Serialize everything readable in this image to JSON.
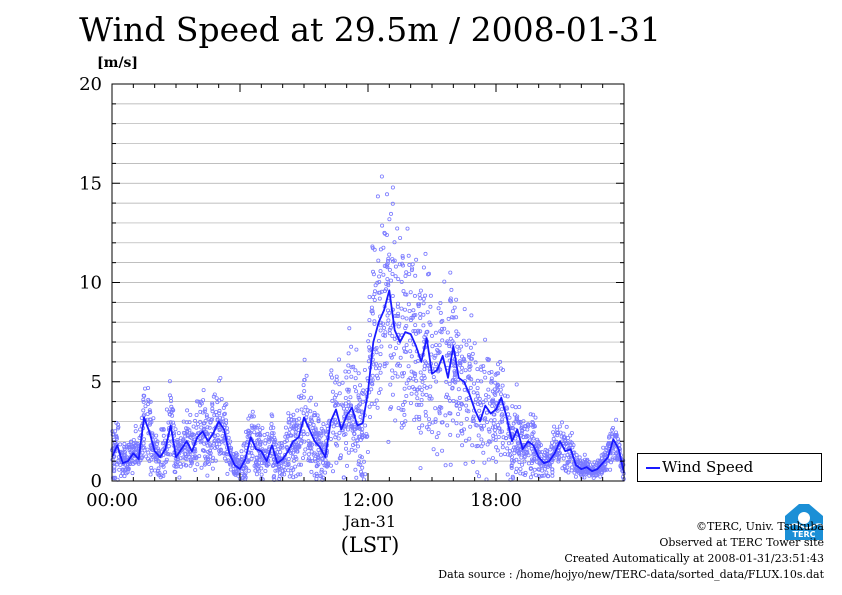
{
  "chart_data": {
    "type": "scatter",
    "title": "Wind Speed at 29.5m / 2008-01-31",
    "y_unit": "[m/s]",
    "ylim": [
      0,
      20
    ],
    "y_ticks": [
      "0",
      "5",
      "10",
      "15",
      "20"
    ],
    "x_range_hours": [
      0,
      24
    ],
    "x_ticks": [
      {
        "hour": 0,
        "label": "00:00"
      },
      {
        "hour": 6,
        "label": "06:00"
      },
      {
        "hour": 12,
        "label": "12:00"
      },
      {
        "hour": 18,
        "label": "18:00"
      }
    ],
    "x_sublabel_date": "Jan-31",
    "x_sublabel_tz": "(LST)",
    "grid": true,
    "legend_position": "right-bottom",
    "series": [
      {
        "name": "Wind Speed",
        "color": "#1a1aff",
        "scatter_color": "#7b7bff",
        "line_hours": [
          0,
          0.25,
          0.5,
          0.75,
          1,
          1.25,
          1.5,
          1.75,
          2,
          2.25,
          2.5,
          2.75,
          3,
          3.25,
          3.5,
          3.75,
          4,
          4.25,
          4.5,
          4.75,
          5,
          5.25,
          5.5,
          5.75,
          6,
          6.25,
          6.5,
          6.75,
          7,
          7.25,
          7.5,
          7.75,
          8,
          8.25,
          8.5,
          8.75,
          9,
          9.25,
          9.5,
          9.75,
          10,
          10.25,
          10.5,
          10.75,
          11,
          11.25,
          11.5,
          11.75,
          12,
          12.25,
          12.5,
          12.75,
          13,
          13.25,
          13.5,
          13.75,
          14,
          14.25,
          14.5,
          14.75,
          15,
          15.25,
          15.5,
          15.75,
          16,
          16.25,
          16.5,
          16.75,
          17,
          17.25,
          17.5,
          17.75,
          18,
          18.25,
          18.5,
          18.75,
          19,
          19.25,
          19.5,
          19.75,
          20,
          20.25,
          20.5,
          20.75,
          21,
          21.25,
          21.5,
          21.75,
          22,
          22.25,
          22.5,
          22.75,
          23,
          23.25,
          23.5,
          23.75,
          24
        ],
        "line_values": [
          1.2,
          1.8,
          0.9,
          1.0,
          1.4,
          1.1,
          3.2,
          2.5,
          1.5,
          1.2,
          1.6,
          2.8,
          1.2,
          1.6,
          2.0,
          1.5,
          2.2,
          2.5,
          2.0,
          2.4,
          3.0,
          2.6,
          1.4,
          0.8,
          0.6,
          1.1,
          2.2,
          1.6,
          1.5,
          1.0,
          1.8,
          0.9,
          1.1,
          1.5,
          2.0,
          2.2,
          3.2,
          2.6,
          2.0,
          1.7,
          1.2,
          3.0,
          3.6,
          2.6,
          3.3,
          3.7,
          2.8,
          2.9,
          4.5,
          7.0,
          8.0,
          8.6,
          9.6,
          7.6,
          7.0,
          7.5,
          7.4,
          6.8,
          6.0,
          7.2,
          5.4,
          5.6,
          6.3,
          5.2,
          6.8,
          5.2,
          5.0,
          4.4,
          3.6,
          3.0,
          3.8,
          3.4,
          3.6,
          4.2,
          3.2,
          2.0,
          2.6,
          1.6,
          2.0,
          1.8,
          1.2,
          0.9,
          1.0,
          1.4,
          2.0,
          1.5,
          1.6,
          0.8,
          0.6,
          0.7,
          0.5,
          0.6,
          0.9,
          1.2,
          2.1,
          1.6,
          0.4
        ],
        "scatter_spread": [
          1.0,
          1.2,
          0.6,
          0.6,
          0.9,
          0.8,
          2.0,
          1.6,
          0.8,
          0.8,
          1.3,
          2.0,
          0.8,
          1.0,
          1.2,
          1.0,
          1.3,
          1.4,
          1.2,
          1.5,
          1.6,
          1.5,
          0.9,
          0.5,
          0.4,
          0.8,
          1.3,
          1.1,
          1.0,
          0.8,
          1.2,
          0.7,
          0.8,
          1.1,
          1.4,
          1.6,
          2.0,
          1.8,
          1.4,
          1.2,
          1.0,
          1.8,
          2.3,
          2.0,
          2.4,
          2.6,
          2.3,
          2.5,
          3.0,
          3.5,
          4.0,
          4.2,
          4.5,
          4.3,
          4.0,
          4.2,
          4.0,
          3.8,
          3.6,
          3.8,
          3.4,
          3.3,
          3.5,
          3.0,
          3.2,
          3.0,
          2.8,
          2.6,
          2.3,
          2.0,
          2.2,
          2.0,
          2.0,
          2.2,
          1.8,
          1.4,
          1.6,
          1.2,
          1.3,
          1.2,
          0.8,
          0.6,
          0.6,
          0.8,
          1.0,
          0.8,
          0.9,
          0.5,
          0.4,
          0.4,
          0.3,
          0.3,
          0.5,
          0.6,
          0.9,
          0.7,
          0.3
        ]
      }
    ]
  },
  "credits": {
    "line1": "©TERC, Univ. Tsukuba",
    "line2": "Observed at TERC Tower site",
    "line3": "Created Automatically at 2008-01-31/23:51:43",
    "line4": "Data source : /home/hojyo/new/TERC-data/sorted_data/FLUX.10s.dat"
  },
  "logo": {
    "icon": "terc-logo-icon",
    "text": "TERC",
    "color": "#1b8fd6"
  }
}
